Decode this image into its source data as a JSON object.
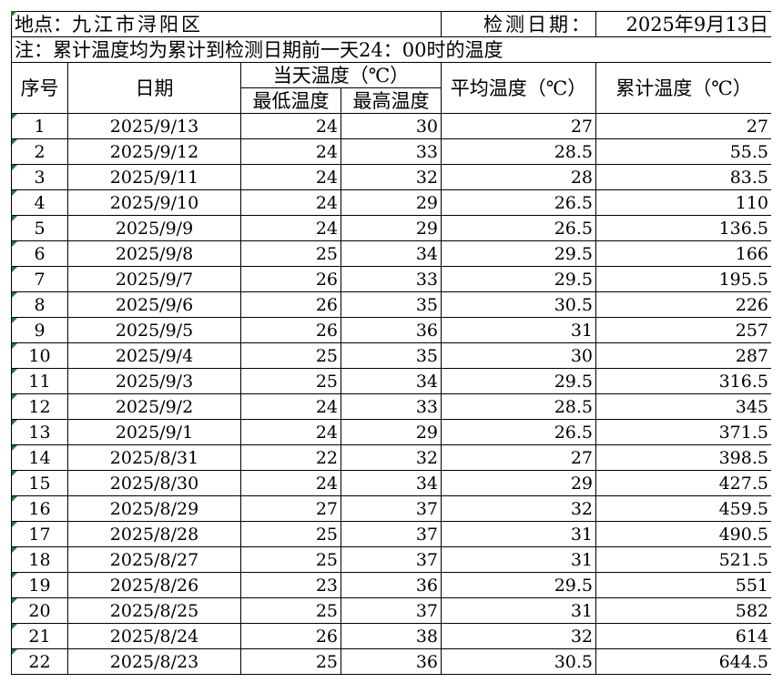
{
  "sheet": {
    "location_label": "地点：",
    "location_value": "九江市浔阳区",
    "date_label": "检测日期：",
    "date_value": "2025年9月13日",
    "note": "注：累计温度均为累计到检测日期前一天24：00时的温度",
    "accent_color": "#1e7b34"
  },
  "headers": {
    "seq": "序号",
    "date": "日期",
    "day_temp": "当天温度（℃）",
    "min_temp": "最低温度",
    "max_temp": "最高温度",
    "avg_temp": "平均温度（℃）",
    "cum_temp": "累计温度（℃）"
  },
  "rows": [
    {
      "seq": "1",
      "date": "2025/9/13",
      "min": "24",
      "max": "30",
      "avg": "27",
      "cum": "27"
    },
    {
      "seq": "2",
      "date": "2025/9/12",
      "min": "24",
      "max": "33",
      "avg": "28.5",
      "cum": "55.5"
    },
    {
      "seq": "3",
      "date": "2025/9/11",
      "min": "24",
      "max": "32",
      "avg": "28",
      "cum": "83.5"
    },
    {
      "seq": "4",
      "date": "2025/9/10",
      "min": "24",
      "max": "29",
      "avg": "26.5",
      "cum": "110"
    },
    {
      "seq": "5",
      "date": "2025/9/9",
      "min": "24",
      "max": "29",
      "avg": "26.5",
      "cum": "136.5"
    },
    {
      "seq": "6",
      "date": "2025/9/8",
      "min": "25",
      "max": "34",
      "avg": "29.5",
      "cum": "166"
    },
    {
      "seq": "7",
      "date": "2025/9/7",
      "min": "26",
      "max": "33",
      "avg": "29.5",
      "cum": "195.5"
    },
    {
      "seq": "8",
      "date": "2025/9/6",
      "min": "26",
      "max": "35",
      "avg": "30.5",
      "cum": "226"
    },
    {
      "seq": "9",
      "date": "2025/9/5",
      "min": "26",
      "max": "36",
      "avg": "31",
      "cum": "257"
    },
    {
      "seq": "10",
      "date": "2025/9/4",
      "min": "25",
      "max": "35",
      "avg": "30",
      "cum": "287"
    },
    {
      "seq": "11",
      "date": "2025/9/3",
      "min": "25",
      "max": "34",
      "avg": "29.5",
      "cum": "316.5"
    },
    {
      "seq": "12",
      "date": "2025/9/2",
      "min": "24",
      "max": "33",
      "avg": "28.5",
      "cum": "345"
    },
    {
      "seq": "13",
      "date": "2025/9/1",
      "min": "24",
      "max": "29",
      "avg": "26.5",
      "cum": "371.5"
    },
    {
      "seq": "14",
      "date": "2025/8/31",
      "min": "22",
      "max": "32",
      "avg": "27",
      "cum": "398.5"
    },
    {
      "seq": "15",
      "date": "2025/8/30",
      "min": "24",
      "max": "34",
      "avg": "29",
      "cum": "427.5"
    },
    {
      "seq": "16",
      "date": "2025/8/29",
      "min": "27",
      "max": "37",
      "avg": "32",
      "cum": "459.5"
    },
    {
      "seq": "17",
      "date": "2025/8/28",
      "min": "25",
      "max": "37",
      "avg": "31",
      "cum": "490.5"
    },
    {
      "seq": "18",
      "date": "2025/8/27",
      "min": "25",
      "max": "37",
      "avg": "31",
      "cum": "521.5"
    },
    {
      "seq": "19",
      "date": "2025/8/26",
      "min": "23",
      "max": "36",
      "avg": "29.5",
      "cum": "551"
    },
    {
      "seq": "20",
      "date": "2025/8/25",
      "min": "25",
      "max": "37",
      "avg": "31",
      "cum": "582"
    },
    {
      "seq": "21",
      "date": "2025/8/24",
      "min": "26",
      "max": "38",
      "avg": "32",
      "cum": "614"
    },
    {
      "seq": "22",
      "date": "2025/8/23",
      "min": "25",
      "max": "36",
      "avg": "30.5",
      "cum": "644.5"
    }
  ]
}
